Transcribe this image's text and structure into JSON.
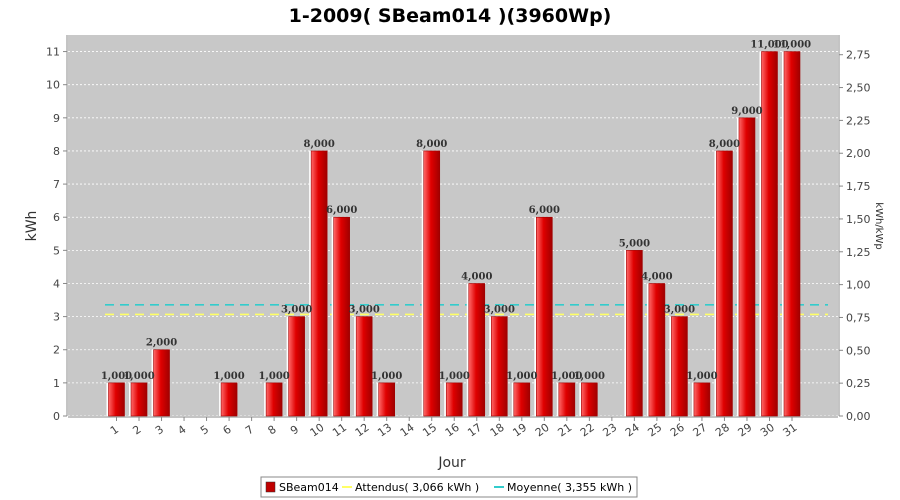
{
  "chart_data": {
    "type": "bar",
    "title": "1-2009( SBeam014 )(3960Wp)",
    "xlabel": "Jour",
    "ylabel": "kWh",
    "ylabel_right": "kWh/kWp",
    "ylim": [
      0,
      11.5
    ],
    "ylim_right": [
      0,
      2.9
    ],
    "yticks": [
      0,
      1,
      2,
      3,
      4,
      5,
      6,
      7,
      8,
      9,
      10,
      11
    ],
    "yticks_right": [
      "0,00",
      "0,25",
      "0,50",
      "0,75",
      "1,00",
      "1,25",
      "1,50",
      "1,75",
      "2,00",
      "2,25",
      "2,50",
      "2,75"
    ],
    "categories": [
      "1",
      "2",
      "3",
      "4",
      "5",
      "6",
      "7",
      "8",
      "9",
      "10",
      "11",
      "12",
      "13",
      "14",
      "15",
      "16",
      "17",
      "18",
      "19",
      "20",
      "21",
      "22",
      "23",
      "24",
      "25",
      "26",
      "27",
      "28",
      "29",
      "30",
      "31"
    ],
    "series": [
      {
        "name": "SBeam014",
        "color": "#e00000",
        "values": [
          1,
          1,
          2,
          0,
          0,
          1,
          0,
          1,
          3,
          8,
          6,
          3,
          1,
          0,
          8,
          1,
          4,
          3,
          1,
          6,
          1,
          1,
          0,
          5,
          4,
          3,
          1,
          8,
          9,
          11,
          11
        ],
        "labels": [
          "1,000",
          "1,000",
          "2,000",
          "",
          "",
          "1,000",
          "",
          "1,000",
          "3,000",
          "8,000",
          "6,000",
          "3,000",
          "1,000",
          "",
          "8,000",
          "1,000",
          "4,000",
          "3,000",
          "1,000",
          "6,000",
          "1,000",
          "1,000",
          "",
          "5,000",
          "4,000",
          "3,000",
          "1,000",
          "8,000",
          "9,000",
          "11,000",
          "11,000"
        ]
      }
    ],
    "reference_lines": [
      {
        "name": "Attendus( 3,066 kWh )",
        "value": 3.066,
        "color": "#ffff66"
      },
      {
        "name": "Moyenne( 3,355 kWh )",
        "value": 3.355,
        "color": "#33cccc"
      }
    ],
    "grid": true,
    "legend": "bottom-center",
    "background_color": "#c8c8c8"
  }
}
